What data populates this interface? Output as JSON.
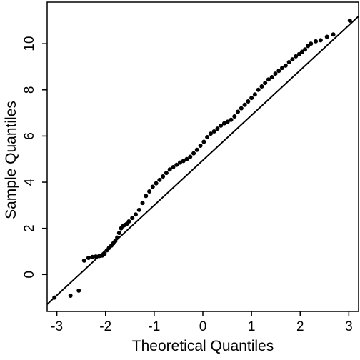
{
  "chart_data": {
    "type": "scatter",
    "title": "",
    "xlabel": "Theoretical Quantiles",
    "ylabel": "Sample Quantiles",
    "xlim": [
      -3.2,
      3.2
    ],
    "ylim": [
      -1.6,
      11.8
    ],
    "xticks": [
      "-3",
      "-2",
      "-1",
      "0",
      "1",
      "2",
      "3"
    ],
    "yticks": [
      "0",
      "2",
      "4",
      "6",
      "8",
      "10"
    ],
    "grid": false,
    "legend": "none",
    "reference_line": {
      "intercept": 4.95,
      "slope": 1.95
    },
    "points": {
      "x": [
        -3.05,
        -2.72,
        -2.55,
        -2.44,
        -2.35,
        -2.27,
        -2.2,
        -2.13,
        -2.07,
        -2.02,
        -1.97,
        -1.93,
        -1.88,
        -1.84,
        -1.8,
        -1.76,
        -1.72,
        -1.68,
        -1.64,
        -1.6,
        -1.56,
        -1.52,
        -1.45,
        -1.38,
        -1.31,
        -1.24,
        -1.17,
        -1.1,
        -1.03,
        -0.96,
        -0.89,
        -0.82,
        -0.75,
        -0.68,
        -0.61,
        -0.54,
        -0.47,
        -0.4,
        -0.33,
        -0.26,
        -0.19,
        -0.12,
        -0.05,
        0.02,
        0.09,
        0.16,
        0.23,
        0.3,
        0.37,
        0.44,
        0.51,
        0.58,
        0.65,
        0.72,
        0.79,
        0.86,
        0.93,
        1.0,
        1.07,
        1.14,
        1.21,
        1.28,
        1.35,
        1.42,
        1.49,
        1.56,
        1.63,
        1.7,
        1.77,
        1.84,
        1.91,
        1.98,
        2.04,
        2.1,
        2.16,
        2.22,
        2.32,
        2.42,
        2.55,
        2.68,
        3.02
      ],
      "y": [
        -1.0,
        -0.92,
        -0.7,
        0.6,
        0.72,
        0.76,
        0.78,
        0.8,
        0.82,
        0.9,
        1.05,
        1.15,
        1.25,
        1.35,
        1.45,
        1.6,
        1.8,
        2.0,
        2.1,
        2.15,
        2.2,
        2.3,
        2.45,
        2.6,
        2.8,
        3.1,
        3.4,
        3.6,
        3.8,
        3.95,
        4.1,
        4.25,
        4.4,
        4.55,
        4.65,
        4.75,
        4.85,
        4.92,
        5.0,
        5.1,
        5.25,
        5.4,
        5.58,
        5.75,
        5.95,
        6.1,
        6.2,
        6.32,
        6.45,
        6.55,
        6.62,
        6.7,
        6.85,
        7.05,
        7.2,
        7.35,
        7.5,
        7.65,
        7.8,
        8.0,
        8.15,
        8.3,
        8.45,
        8.55,
        8.7,
        8.82,
        8.95,
        9.05,
        9.2,
        9.32,
        9.45,
        9.55,
        9.65,
        9.75,
        9.9,
        10.0,
        10.1,
        10.15,
        10.3,
        10.4,
        11.0
      ]
    }
  }
}
